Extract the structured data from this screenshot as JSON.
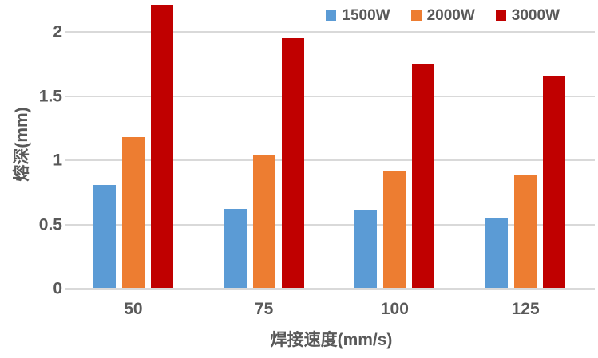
{
  "chart_data": {
    "type": "bar",
    "title": "",
    "categories": [
      "50",
      "75",
      "100",
      "125"
    ],
    "series": [
      {
        "name": "1500W",
        "color": "#5B9BD5",
        "values": [
          0.81,
          0.62,
          0.61,
          0.55
        ]
      },
      {
        "name": "2000W",
        "color": "#ED7D31",
        "values": [
          1.18,
          1.04,
          0.92,
          0.88
        ]
      },
      {
        "name": "3000W",
        "color": "#C00000",
        "values": [
          2.21,
          1.95,
          1.75,
          1.66
        ]
      }
    ],
    "xlabel": "焊接速度(mm/s)",
    "ylabel": "熔深(mm)",
    "ylim": [
      0,
      2.25
    ],
    "yticks": [
      0,
      0.5,
      1,
      1.5,
      2
    ],
    "grid": true,
    "legend_position": "top-right",
    "colors": {
      "text": "#595959",
      "gridline": "#D9D9D9",
      "background": "#FFFFFF"
    }
  }
}
